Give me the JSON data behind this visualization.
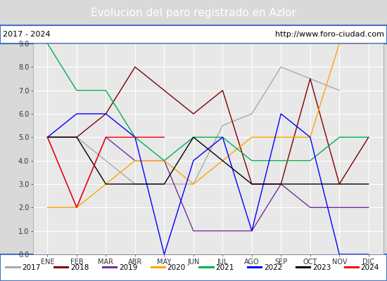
{
  "title": "Evolucion del paro registrado en Azlor",
  "title_color": "#ffffff",
  "title_bg": "#4472c4",
  "subtitle_left": "2017 - 2024",
  "subtitle_right": "http://www.foro-ciudad.com",
  "months": [
    "ENE",
    "FEB",
    "MAR",
    "ABR",
    "MAY",
    "JUN",
    "JUL",
    "AGO",
    "SEP",
    "OCT",
    "NOV",
    "DIC"
  ],
  "ylim": [
    0.0,
    9.0
  ],
  "yticks": [
    0.0,
    1.0,
    2.0,
    3.0,
    4.0,
    5.0,
    6.0,
    7.0,
    8.0,
    9.0
  ],
  "series": [
    {
      "label": "2017",
      "color": "#aaaaaa",
      "linewidth": 1.0,
      "data_x": [
        0,
        1,
        2,
        3,
        4,
        5,
        6,
        7,
        8,
        9,
        10
      ],
      "data_y": [
        5.0,
        5.0,
        4.0,
        3.0,
        3.0,
        3.0,
        5.5,
        6.0,
        8.0,
        7.5,
        7.0
      ]
    },
    {
      "label": "2018",
      "color": "#800000",
      "linewidth": 1.0,
      "data_x": [
        0,
        1,
        2,
        3,
        4,
        5,
        6,
        7,
        8,
        9,
        10,
        11
      ],
      "data_y": [
        5.0,
        5.0,
        6.0,
        8.0,
        7.0,
        6.0,
        7.0,
        3.0,
        3.0,
        7.5,
        3.0,
        5.0
      ]
    },
    {
      "label": "2019",
      "color": "#7030a0",
      "linewidth": 1.0,
      "data_x": [
        0,
        1,
        2,
        3,
        4,
        5,
        6,
        7,
        8,
        9,
        10,
        11
      ],
      "data_y": [
        5.0,
        2.0,
        5.0,
        4.0,
        4.0,
        1.0,
        1.0,
        1.0,
        3.0,
        2.0,
        2.0,
        2.0
      ]
    },
    {
      "label": "2020",
      "color": "#ffa500",
      "linewidth": 1.0,
      "data_x": [
        0,
        1,
        2,
        3,
        4,
        5,
        6,
        7,
        8,
        9,
        10,
        11
      ],
      "data_y": [
        2.0,
        2.0,
        3.0,
        4.0,
        4.0,
        3.0,
        4.0,
        5.0,
        5.0,
        5.0,
        9.0,
        9.0
      ]
    },
    {
      "label": "2021",
      "color": "#00b050",
      "linewidth": 1.0,
      "data_x": [
        0,
        1,
        2,
        3,
        4,
        5,
        6,
        7,
        8,
        9,
        10,
        11
      ],
      "data_y": [
        9.0,
        7.0,
        7.0,
        5.0,
        4.0,
        5.0,
        5.0,
        4.0,
        4.0,
        4.0,
        5.0,
        5.0
      ]
    },
    {
      "label": "2022",
      "color": "#0000ff",
      "linewidth": 1.0,
      "data_x": [
        0,
        1,
        2,
        3,
        4,
        5,
        6,
        7,
        8,
        9,
        10,
        11
      ],
      "data_y": [
        5.0,
        6.0,
        6.0,
        5.0,
        0.0,
        4.0,
        5.0,
        1.0,
        6.0,
        5.0,
        0.0,
        0.0
      ]
    },
    {
      "label": "2023",
      "color": "#000000",
      "linewidth": 1.0,
      "data_x": [
        0,
        1,
        2,
        3,
        4,
        5,
        6,
        7,
        8,
        9,
        10,
        11
      ],
      "data_y": [
        5.0,
        5.0,
        3.0,
        3.0,
        3.0,
        5.0,
        4.0,
        3.0,
        3.0,
        3.0,
        3.0,
        3.0
      ]
    },
    {
      "label": "2024",
      "color": "#ff0000",
      "linewidth": 1.0,
      "data_x": [
        0,
        1,
        2,
        3,
        4
      ],
      "data_y": [
        5.0,
        2.0,
        5.0,
        5.0,
        5.0
      ]
    }
  ],
  "bg_color": "#d9d9d9",
  "plot_bg_color": "#e8e8e8",
  "grid_color": "#ffffff",
  "border_color": "#4472c4",
  "title_fontsize": 11,
  "subtitle_fontsize": 8,
  "tick_fontsize": 7,
  "legend_fontsize": 7.5
}
